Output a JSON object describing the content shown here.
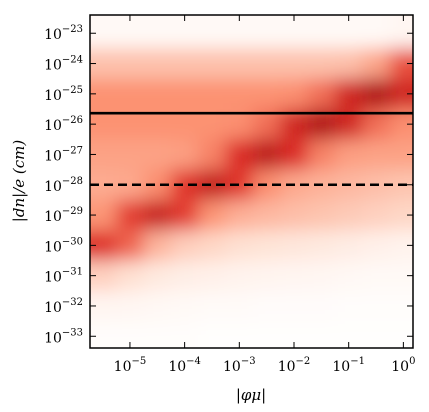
{
  "chart_data": {
    "type": "hexbin",
    "x_label": "|φμ|",
    "y_label": "|dn|/e (cm)",
    "xscale": "log",
    "yscale": "log",
    "xlim": [
      1.86e-06,
      1.5
    ],
    "ylim": [
      4.1e-34,
      4e-23
    ],
    "xticks": [
      {
        "value": 1e-05,
        "label": "10−5"
      },
      {
        "value": 0.0001,
        "label": "10−4"
      },
      {
        "value": 0.001,
        "label": "10−3"
      },
      {
        "value": 0.01,
        "label": "10−2"
      },
      {
        "value": 0.1,
        "label": "10−1"
      },
      {
        "value": 1,
        "label": "100"
      }
    ],
    "yticks": [
      {
        "value": 1e-23,
        "label": "10−23"
      },
      {
        "value": 1e-24,
        "label": "10−24"
      },
      {
        "value": 1e-25,
        "label": "10−25"
      },
      {
        "value": 1e-26,
        "label": "10−26"
      },
      {
        "value": 1e-27,
        "label": "10−27"
      },
      {
        "value": 1e-28,
        "label": "10−28"
      },
      {
        "value": 1e-29,
        "label": "10−29"
      },
      {
        "value": 1e-30,
        "label": "10−30"
      },
      {
        "value": 1e-31,
        "label": "10−31"
      },
      {
        "value": 1e-32,
        "label": "10−32"
      },
      {
        "value": 1e-33,
        "label": "10−33"
      }
    ],
    "colormap": [
      "#ffffff",
      "#fee0d2",
      "#fc9272",
      "#de2d26",
      "#a50f15"
    ],
    "density": {
      "x_centers": [
        3.16e-06,
        1e-05,
        3.16e-05,
        0.0001,
        0.000316,
        0.001,
        0.00316,
        0.01,
        0.0316,
        0.1,
        0.316,
        1
      ],
      "y_centers": [
        1e-23,
        1e-24,
        1e-25,
        1e-26,
        1e-27,
        1e-28,
        1e-29,
        1e-30,
        1e-31,
        1e-32,
        1e-33
      ],
      "values": [
        [
          0.05,
          0.05,
          0.05,
          0.05,
          0.05,
          0.05,
          0.05,
          0.05,
          0.05,
          0.05,
          0.05,
          0.07
        ],
        [
          0.35,
          0.35,
          0.35,
          0.35,
          0.35,
          0.35,
          0.35,
          0.35,
          0.35,
          0.36,
          0.44,
          0.66
        ],
        [
          0.5,
          0.5,
          0.5,
          0.5,
          0.5,
          0.5,
          0.5,
          0.51,
          0.59,
          0.81,
          0.95,
          0.81
        ],
        [
          0.5,
          0.5,
          0.5,
          0.5,
          0.5,
          0.51,
          0.59,
          0.81,
          0.95,
          0.81,
          0.59,
          0.51
        ],
        [
          0.45,
          0.45,
          0.45,
          0.46,
          0.54,
          0.76,
          0.9,
          0.76,
          0.54,
          0.46,
          0.45,
          0.45
        ],
        [
          0.42,
          0.43,
          0.51,
          0.73,
          0.87,
          0.73,
          0.51,
          0.43,
          0.4,
          0.38,
          0.36,
          0.34
        ],
        [
          0.49,
          0.71,
          0.85,
          0.71,
          0.49,
          0.41,
          0.38,
          0.36,
          0.34,
          0.32,
          0.3,
          0.28
        ],
        [
          0.75,
          0.61,
          0.39,
          0.31,
          0.28,
          0.25,
          0.22,
          0.2,
          0.18,
          0.15,
          0.12,
          0.1
        ],
        [
          0.3,
          0.25,
          0.18,
          0.14,
          0.12,
          0.1,
          0.09,
          0.08,
          0.07,
          0.06,
          0.05,
          0.05
        ],
        [
          0.08,
          0.07,
          0.06,
          0.05,
          0.04,
          0.04,
          0.03,
          0.03,
          0.03,
          0.02,
          0.02,
          0.02
        ],
        [
          0.02,
          0.02,
          0.02,
          0.02,
          0.01,
          0.01,
          0.01,
          0.01,
          0.01,
          0.01,
          0.01,
          0.01
        ]
      ]
    },
    "hlines": [
      {
        "value": 2.3e-26,
        "style": "solid",
        "color": "#000000"
      },
      {
        "value": 1e-28,
        "style": "dashed",
        "color": "#000000"
      }
    ]
  }
}
